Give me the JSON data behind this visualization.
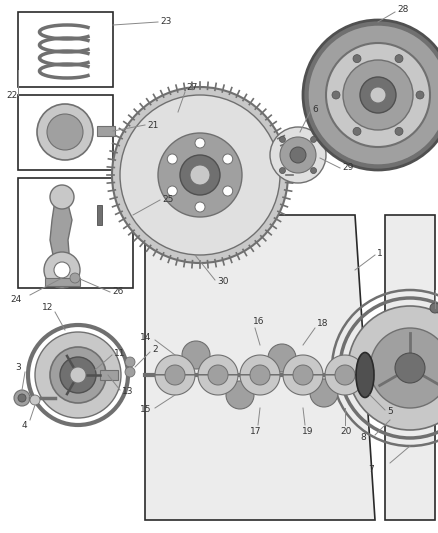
{
  "bg_color": "#ffffff",
  "line_color": "#2a2a2a",
  "fig_width": 4.38,
  "fig_height": 5.33,
  "gray1": "#c8c8c8",
  "gray2": "#a0a0a0",
  "gray3": "#707070",
  "gray4": "#e0e0e0",
  "gray5": "#505050",
  "label_fs": 6.5
}
